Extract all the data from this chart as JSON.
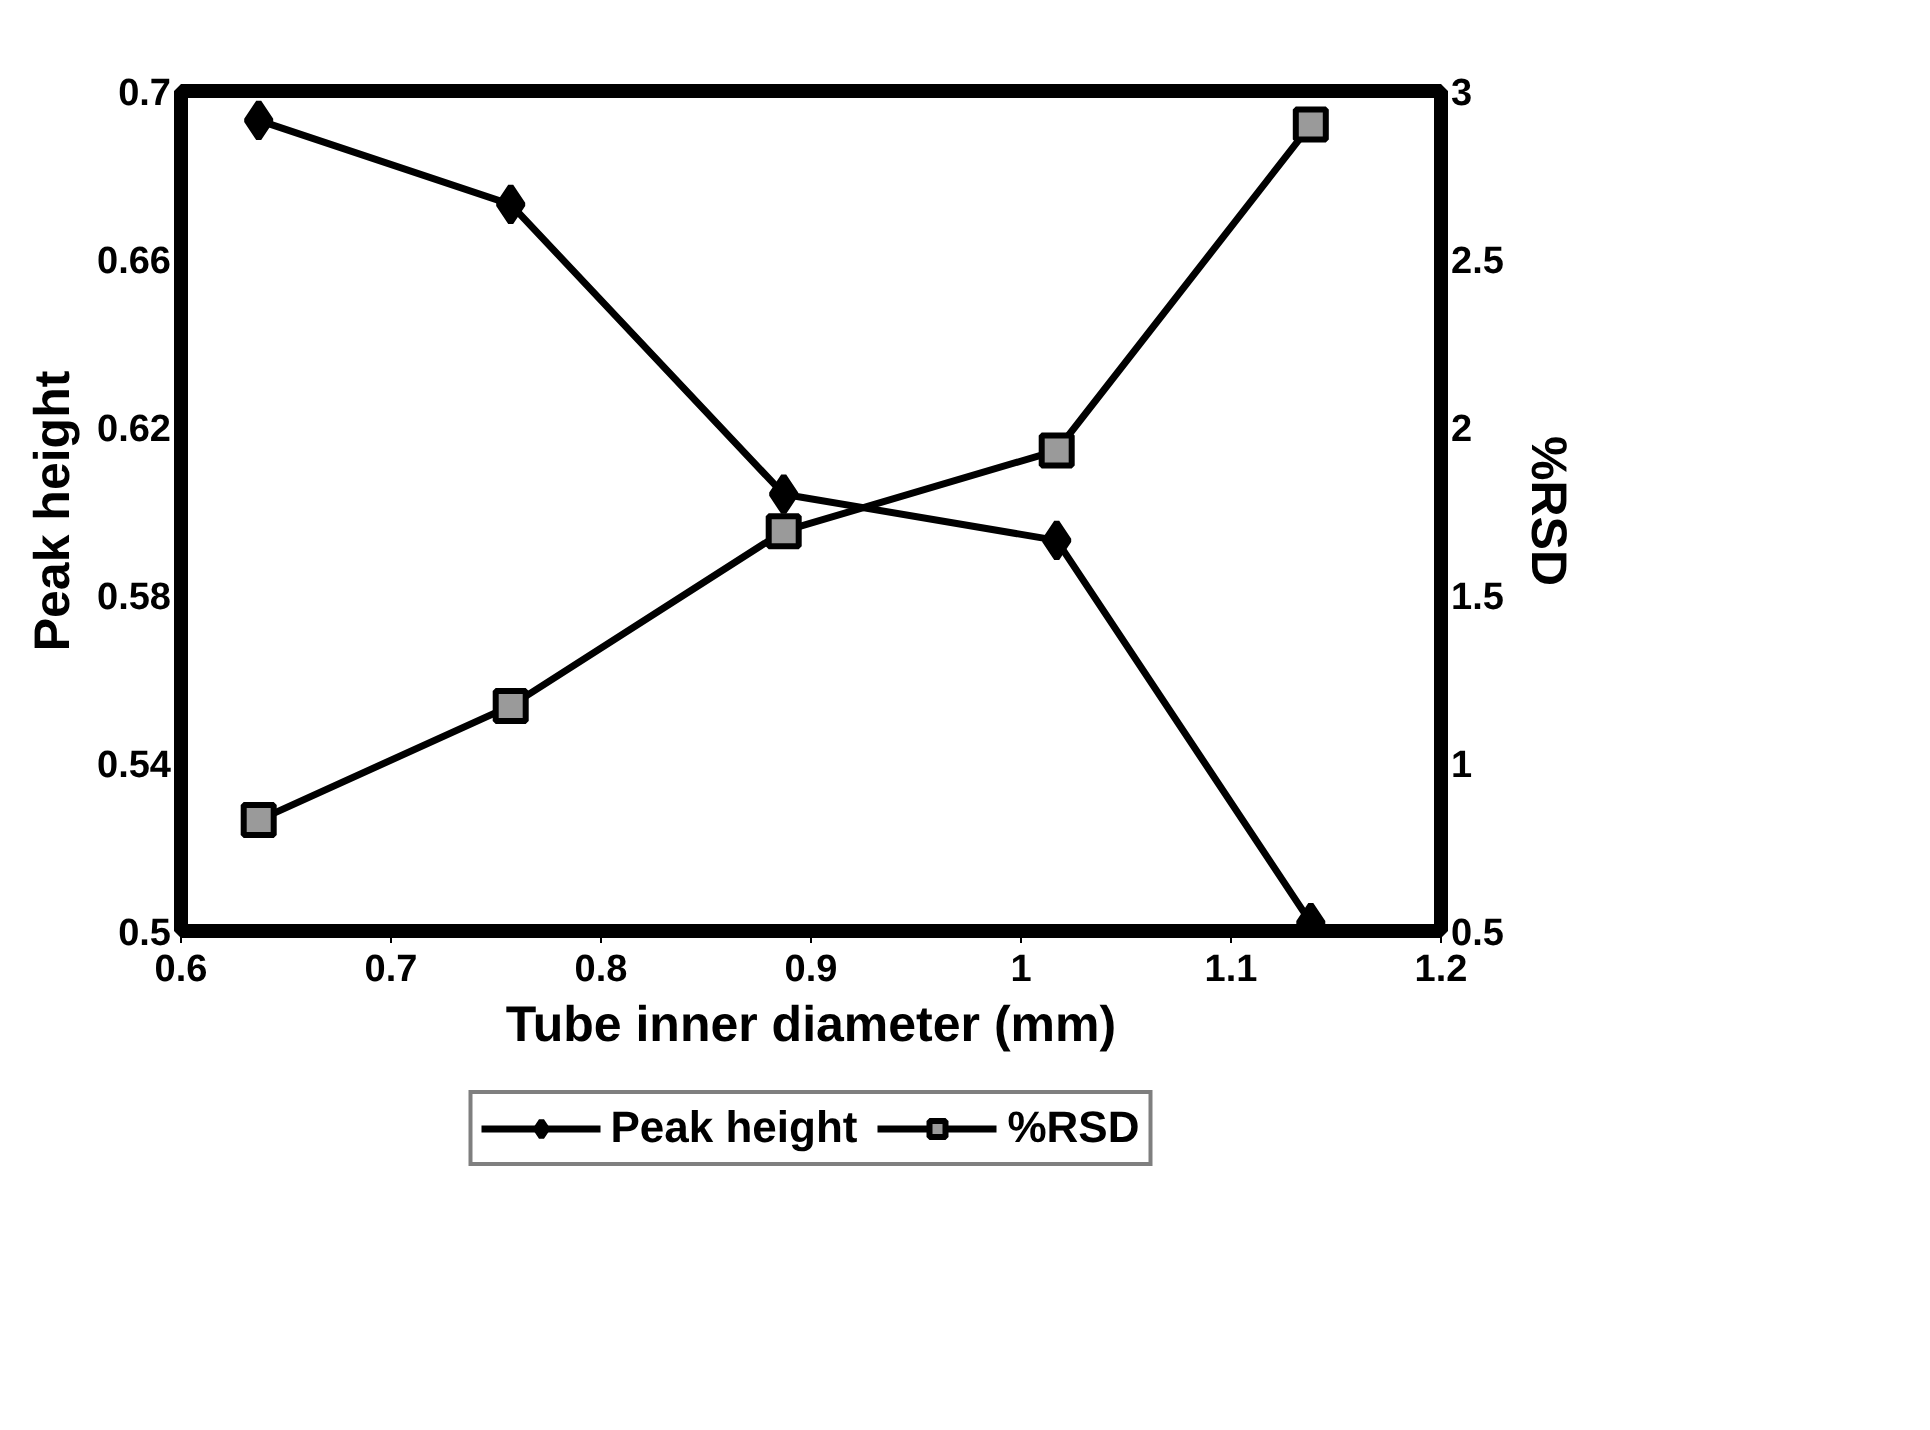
{
  "chart_data": {
    "type": "line",
    "xlabel": "Tube inner diameter (mm)",
    "ylabel": "Peak height",
    "y2label": "%RSD",
    "x": [
      0.637,
      0.757,
      0.887,
      1.017,
      1.138
    ],
    "series": [
      {
        "name": "Peak height",
        "color": "#000000",
        "marker": "diamond",
        "values": [
          0.693,
          0.673,
          0.604,
          0.593,
          0.502
        ]
      },
      {
        "name": "%RSD",
        "color": "#000000",
        "marker": "square",
        "axis": "y2",
        "values": [
          0.83,
          1.17,
          1.69,
          1.93,
          2.9
        ]
      }
    ],
    "xlim": [
      0.6,
      1.2
    ],
    "xticks": [
      0.6,
      0.7,
      0.8,
      0.9,
      1,
      1.1,
      1.2
    ],
    "ylim": [
      0.5,
      0.7
    ],
    "yticks": [
      0.5,
      0.54,
      0.58,
      0.62,
      0.66,
      0.7
    ],
    "y2lim": [
      0.5,
      3
    ],
    "y2ticks": [
      0.5,
      1,
      1.5,
      2,
      2.5,
      3
    ],
    "grid": false,
    "legend": "bottom",
    "line_style": "solid"
  }
}
